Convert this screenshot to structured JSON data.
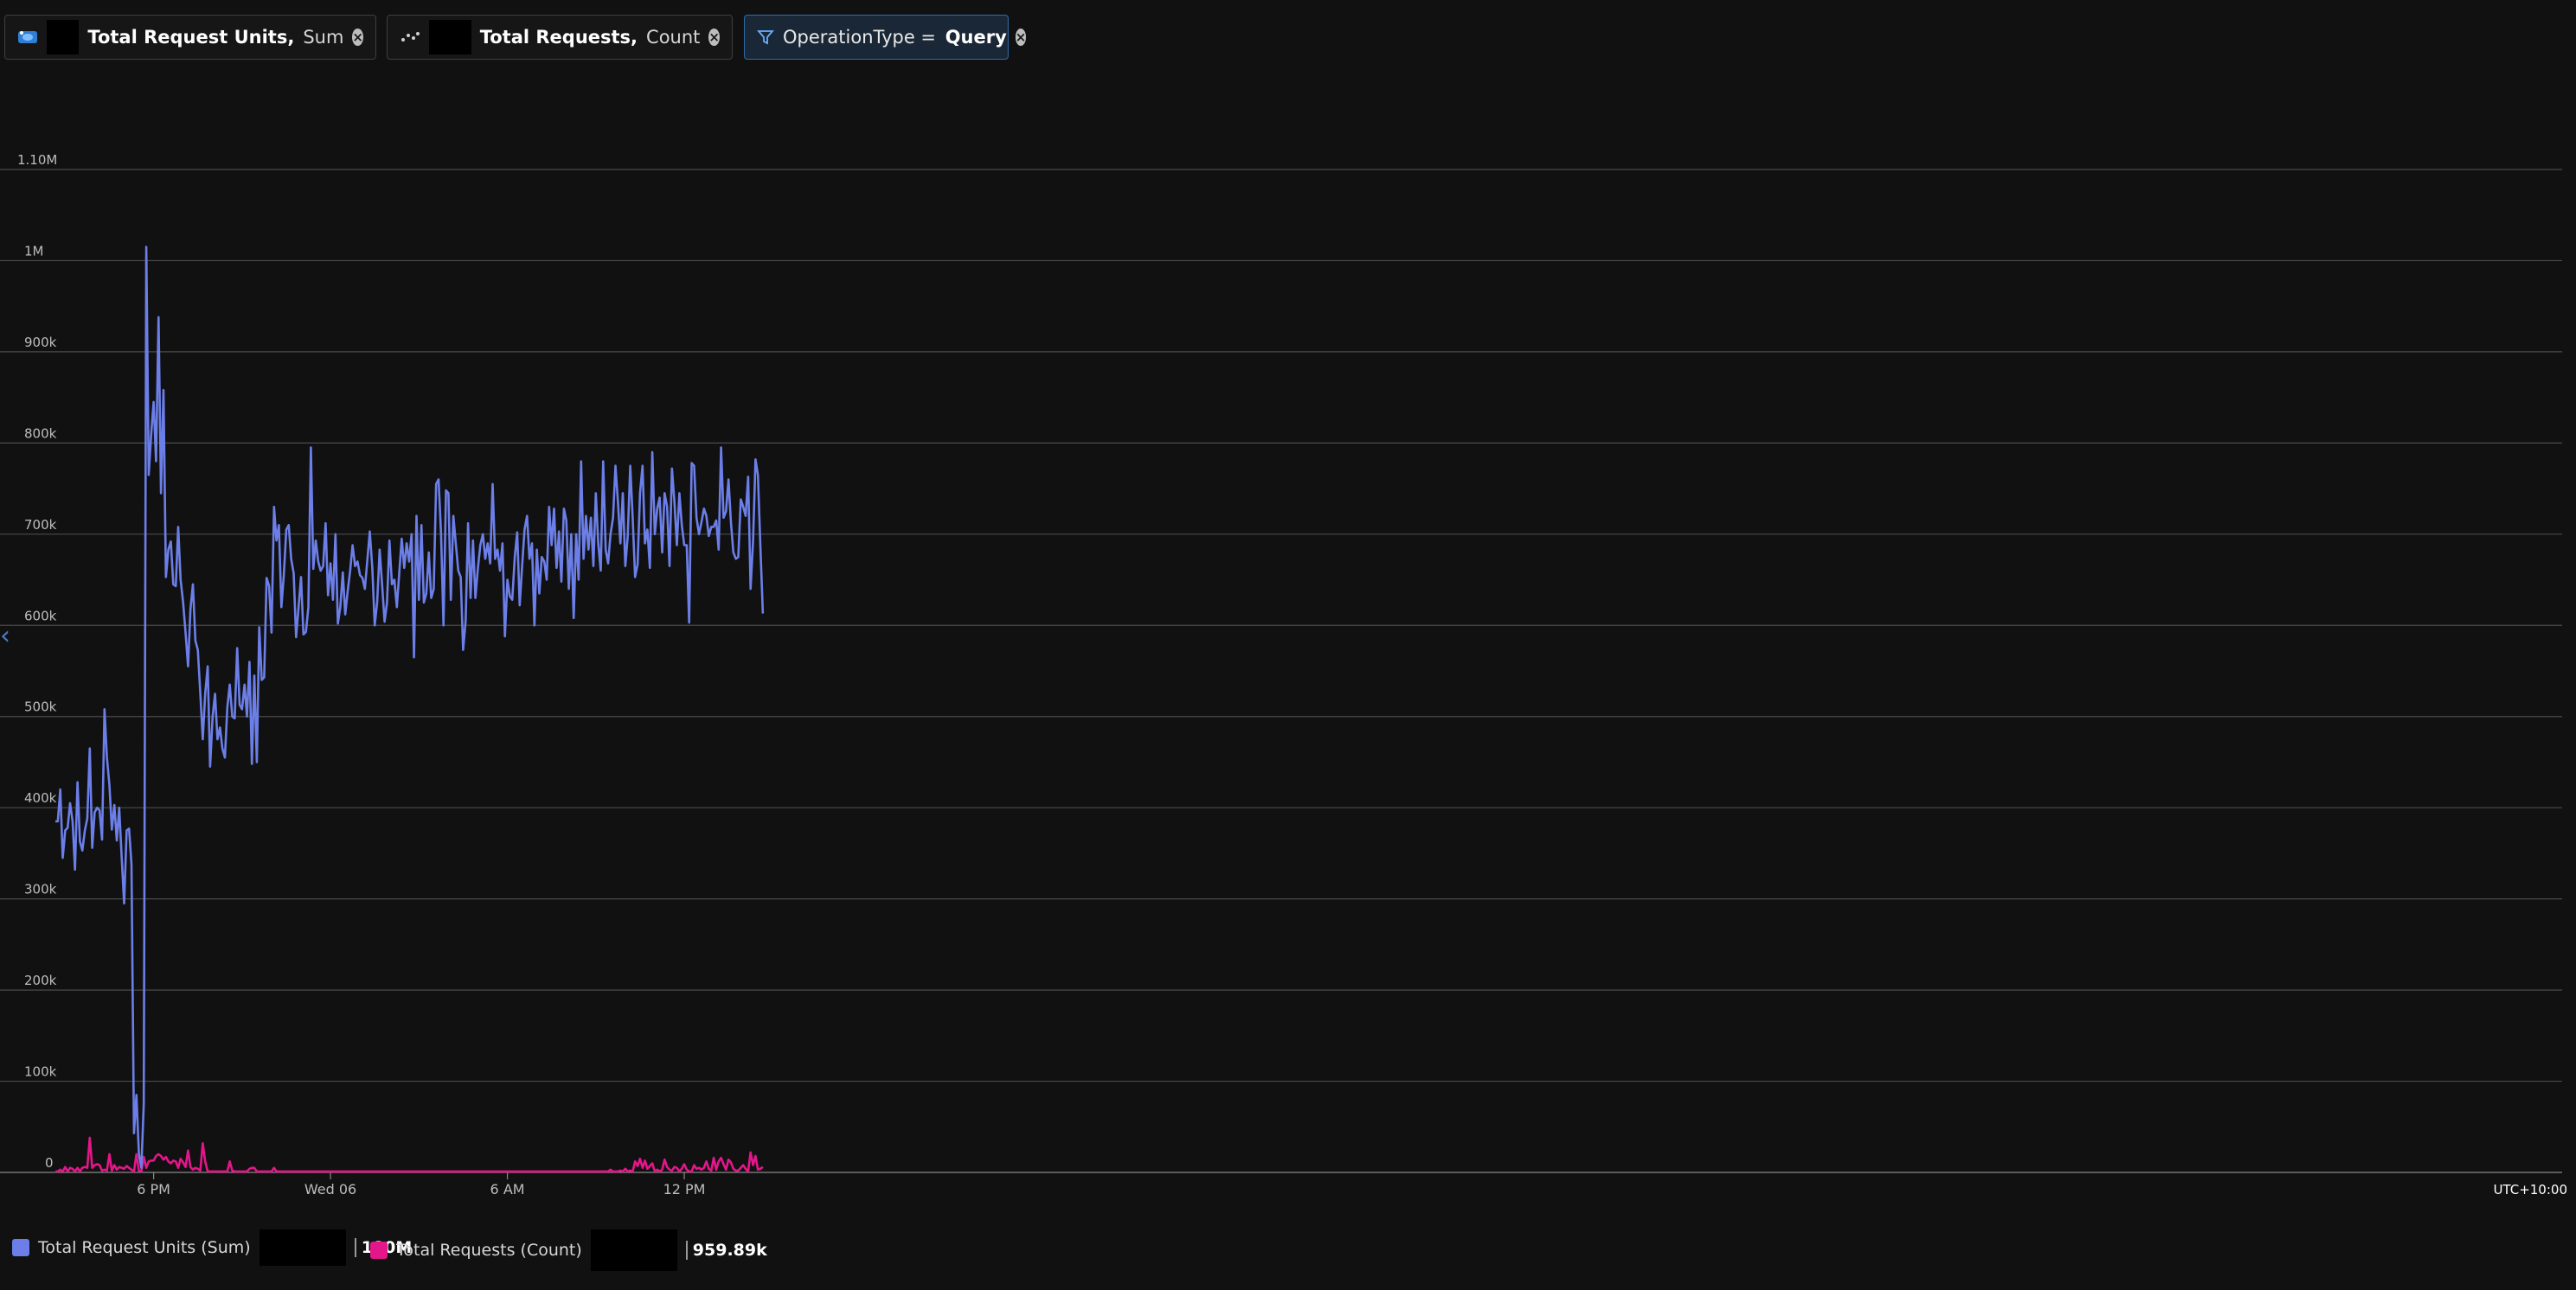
{
  "pills": [
    {
      "metric": "Total Request Units,",
      "agg": "Sum",
      "icon": "cosmosdb-icon"
    },
    {
      "metric": "Total Requests,",
      "agg": "Count",
      "icon": "scatter-icon"
    }
  ],
  "filter": {
    "prefix": "OperationType = ",
    "value": "Query",
    "icon": "filter-icon"
  },
  "legend": [
    {
      "label": "Total Request Units (Sum)",
      "value": "180M",
      "color": "#6c7fe8"
    },
    {
      "label": "Total Requests (Count)",
      "value": "959.89k",
      "color": "#e3168a"
    }
  ],
  "timezone": "UTC+10:00",
  "chart_data": {
    "type": "line",
    "yticks": [
      "0",
      "100k",
      "200k",
      "300k",
      "400k",
      "500k",
      "600k",
      "700k",
      "800k",
      "900k",
      "1M",
      "1.10M"
    ],
    "ylim": [
      0,
      1100000
    ],
    "xticks": [
      {
        "label": "6 PM",
        "idx": 40
      },
      {
        "label": "Wed 06",
        "idx": 112
      },
      {
        "label": "6 AM",
        "idx": 184
      },
      {
        "label": "12 PM",
        "idx": 256
      }
    ],
    "series": [
      {
        "name": "Total Request Units (Sum)",
        "color": "#6c7fe8",
        "values": [
          385000,
          385000,
          420000,
          345000,
          375000,
          378000,
          405000,
          385000,
          332000,
          428000,
          363000,
          353000,
          375000,
          388000,
          465000,
          356000,
          395000,
          400000,
          397000,
          365000,
          508000,
          455000,
          425000,
          376000,
          403000,
          364000,
          400000,
          345000,
          295000,
          375000,
          377000,
          338000,
          43000,
          85000,
          20000,
          5000,
          75000,
          1015000,
          765000,
          810000,
          845000,
          780000,
          938000,
          745000,
          858000,
          653000,
          683000,
          692000,
          645000,
          643000,
          708000,
          650000,
          625000,
          592000,
          555000,
          618000,
          645000,
          583000,
          573000,
          525000,
          475000,
          525000,
          555000,
          445000,
          500000,
          525000,
          475000,
          488000,
          465000,
          455000,
          510000,
          535000,
          500000,
          498000,
          575000,
          513000,
          508000,
          535000,
          500000,
          560000,
          448000,
          545000,
          450000,
          598000,
          540000,
          543000,
          652000,
          643000,
          592000,
          730000,
          693000,
          710000,
          620000,
          655000,
          705000,
          710000,
          673000,
          657000,
          587000,
          620000,
          653000,
          590000,
          593000,
          620000,
          795000,
          662000,
          693000,
          670000,
          660000,
          665000,
          712000,
          633000,
          668000,
          628000,
          700000,
          602000,
          620000,
          658000,
          612000,
          638000,
          660000,
          688000,
          665000,
          670000,
          655000,
          652000,
          640000,
          672000,
          703000,
          663000,
          600000,
          625000,
          683000,
          645000,
          604000,
          625000,
          693000,
          645000,
          650000,
          620000,
          658000,
          695000,
          663000,
          690000,
          670000,
          700000,
          565000,
          720000,
          628000,
          710000,
          625000,
          635000,
          680000,
          630000,
          640000,
          755000,
          760000,
          700000,
          600000,
          748000,
          745000,
          628000,
          720000,
          690000,
          660000,
          653000,
          573000,
          605000,
          712000,
          630000,
          693000,
          630000,
          663000,
          688000,
          700000,
          673000,
          690000,
          668000,
          755000,
          673000,
          683000,
          660000,
          690000,
          588000,
          650000,
          632000,
          628000,
          675000,
          702000,
          622000,
          665000,
          705000,
          720000,
          673000,
          690000,
          600000,
          683000,
          635000,
          675000,
          670000,
          650000,
          730000,
          688000,
          728000,
          663000,
          703000,
          648000,
          728000,
          715000,
          640000,
          700000,
          608000,
          700000,
          650000,
          780000,
          673000,
          720000,
          683000,
          718000,
          665000,
          745000,
          690000,
          660000,
          780000,
          683000,
          668000,
          700000,
          718000,
          775000,
          735000,
          690000,
          745000,
          665000,
          698000,
          775000,
          718000,
          653000,
          667000,
          745000,
          775000,
          690000,
          705000,
          663000,
          790000,
          700000,
          728000,
          740000,
          680000,
          745000,
          730000,
          665000,
          772000,
          735000,
          688000,
          745000,
          710000,
          688000,
          688000,
          603000,
          778000,
          775000,
          718000,
          700000,
          713000,
          728000,
          720000,
          698000,
          708000,
          708000,
          715000,
          683000,
          795000,
          718000,
          725000,
          760000,
          713000,
          680000,
          673000,
          675000,
          738000,
          730000,
          720000,
          763000,
          640000,
          693000,
          782000,
          765000,
          685000,
          613000
        ]
      },
      {
        "name": "Total Requests (Count)",
        "color": "#e3168a",
        "values": [
          1000,
          1000,
          3000,
          1000,
          6000,
          1000,
          5000,
          4000,
          1000,
          5000,
          1000,
          5000,
          6000,
          5000,
          38000,
          5000,
          8000,
          9000,
          8000,
          2000,
          3000,
          2000,
          20000,
          2000,
          8000,
          3000,
          6000,
          5000,
          4000,
          7000,
          5000,
          3000,
          1000,
          20000,
          2000,
          1000,
          17000,
          5000,
          12000,
          13000,
          13000,
          18000,
          20000,
          18000,
          14000,
          17000,
          12000,
          10000,
          13000,
          12000,
          5000,
          15000,
          11000,
          6000,
          24000,
          6000,
          3000,
          5000,
          4000,
          2000,
          32000,
          12000,
          1000,
          1000,
          1000,
          1000,
          1000,
          1000,
          1000,
          1000,
          1000,
          12000,
          2000,
          1000,
          1000,
          1000,
          1000,
          1000,
          1000,
          4000,
          5000,
          5000,
          1000,
          1000,
          1000,
          1000,
          1000,
          1000,
          1000,
          5000,
          1000,
          1000,
          1000,
          1000,
          1000,
          1000,
          1000,
          1000,
          1000,
          1000,
          1000,
          1000,
          1000,
          1000,
          1000,
          1000,
          1000,
          1000,
          1000,
          1000,
          1000,
          1000,
          1000,
          1000,
          1000,
          1000,
          1000,
          1000,
          1000,
          1000,
          1000,
          1000,
          1000,
          1000,
          1000,
          1000,
          1000,
          1000,
          1000,
          1000,
          1000,
          1000,
          1000,
          1000,
          1000,
          1000,
          1000,
          1000,
          1000,
          1000,
          1000,
          1000,
          1000,
          1000,
          1000,
          1000,
          1000,
          1000,
          1000,
          1000,
          1000,
          1000,
          1000,
          1000,
          1000,
          1000,
          1000,
          1000,
          1000,
          1000,
          1000,
          1000,
          1000,
          1000,
          1000,
          1000,
          1000,
          1000,
          1000,
          1000,
          1000,
          1000,
          1000,
          1000,
          1000,
          1000,
          1000,
          1000,
          1000,
          1000,
          1000,
          1000,
          1000,
          1000,
          1000,
          1000,
          1000,
          1000,
          1000,
          1000,
          1000,
          1000,
          1000,
          1000,
          1000,
          1000,
          1000,
          1000,
          1000,
          1000,
          1000,
          1000,
          1000,
          1000,
          1000,
          1000,
          1000,
          1000,
          1000,
          1000,
          1000,
          1000,
          1000,
          1000,
          1000,
          1000,
          1000,
          1000,
          1000,
          1000,
          1000,
          1000,
          1000,
          1000,
          1000,
          1000,
          3000,
          1000,
          1000,
          1000,
          2000,
          1000,
          4000,
          1000,
          2000,
          1000,
          12000,
          7000,
          15000,
          5000,
          13000,
          4000,
          7000,
          10000,
          1000,
          3000,
          1000,
          3000,
          14000,
          6000,
          3000,
          2000,
          6000,
          5000,
          1000,
          4000,
          9000,
          3000,
          1000,
          1000,
          8000,
          4000,
          5000,
          3000,
          5000,
          12000,
          4000,
          2000,
          16000,
          3000,
          12000,
          16000,
          9000,
          3000,
          14000,
          11000,
          4000,
          2000,
          2000,
          5000,
          8000,
          4000,
          1000,
          22000,
          8000,
          18000,
          3000,
          4000,
          6000
        ]
      }
    ]
  }
}
